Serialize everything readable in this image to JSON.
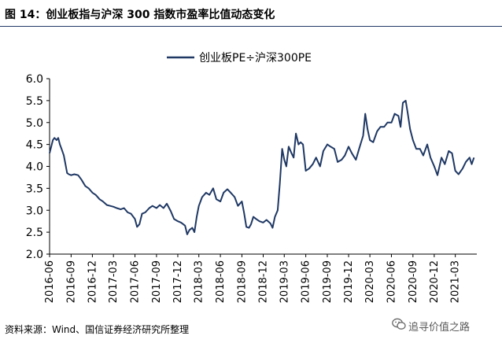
{
  "figure": {
    "title": "图 14：创业板指与沪深 300 指数市盈率比值动态变化",
    "source": "资料来源：Wind、国信证券经济研究所整理",
    "watermark": "追寻价值之路"
  },
  "colors": {
    "line": "#1f3864",
    "rule": "#1f3864",
    "axis": "#000000"
  },
  "chart_data": {
    "type": "line",
    "title": "",
    "xlabel": "",
    "ylabel": "",
    "ylim": [
      2.0,
      6.0
    ],
    "yticks": [
      "2.0",
      "2.5",
      "3.0",
      "3.5",
      "4.0",
      "4.5",
      "5.0",
      "5.5",
      "6.0"
    ],
    "xticks": [
      "2016-06",
      "2016-09",
      "2016-12",
      "2017-03",
      "2017-06",
      "2017-09",
      "2017-12",
      "2018-03",
      "2018-06",
      "2018-09",
      "2018-12",
      "2019-03",
      "2019-06",
      "2019-09",
      "2019-12",
      "2020-03",
      "2020-06",
      "2020-09",
      "2020-12",
      "2021-03"
    ],
    "legend": {
      "position": "top-center",
      "entries": [
        "创业板PE÷沪深300PE"
      ]
    },
    "grid": false,
    "series": [
      {
        "name": "创业板PE÷沪深300PE",
        "points": [
          [
            "2016-06-01",
            4.3
          ],
          [
            "2016-06-08",
            4.45
          ],
          [
            "2016-06-15",
            4.6
          ],
          [
            "2016-06-22",
            4.65
          ],
          [
            "2016-07-01",
            4.6
          ],
          [
            "2016-07-08",
            4.65
          ],
          [
            "2016-07-15",
            4.5
          ],
          [
            "2016-07-22",
            4.4
          ],
          [
            "2016-08-01",
            4.25
          ],
          [
            "2016-08-08",
            4.05
          ],
          [
            "2016-08-15",
            3.85
          ],
          [
            "2016-08-22",
            3.82
          ],
          [
            "2016-09-01",
            3.8
          ],
          [
            "2016-09-15",
            3.82
          ],
          [
            "2016-10-01",
            3.8
          ],
          [
            "2016-10-15",
            3.7
          ],
          [
            "2016-11-01",
            3.55
          ],
          [
            "2016-11-15",
            3.5
          ],
          [
            "2016-12-01",
            3.4
          ],
          [
            "2016-12-15",
            3.35
          ],
          [
            "2017-01-01",
            3.25
          ],
          [
            "2017-01-15",
            3.2
          ],
          [
            "2017-02-01",
            3.12
          ],
          [
            "2017-02-15",
            3.1
          ],
          [
            "2017-03-01",
            3.08
          ],
          [
            "2017-03-15",
            3.05
          ],
          [
            "2017-04-01",
            3.02
          ],
          [
            "2017-04-15",
            3.05
          ],
          [
            "2017-05-01",
            2.95
          ],
          [
            "2017-05-15",
            2.92
          ],
          [
            "2017-06-01",
            2.8
          ],
          [
            "2017-06-10",
            2.62
          ],
          [
            "2017-06-20",
            2.68
          ],
          [
            "2017-07-01",
            2.92
          ],
          [
            "2017-07-15",
            2.95
          ],
          [
            "2017-08-01",
            3.05
          ],
          [
            "2017-08-15",
            3.1
          ],
          [
            "2017-09-01",
            3.05
          ],
          [
            "2017-09-15",
            3.12
          ],
          [
            "2017-10-01",
            3.05
          ],
          [
            "2017-10-15",
            3.15
          ],
          [
            "2017-11-01",
            2.98
          ],
          [
            "2017-11-15",
            2.8
          ],
          [
            "2017-12-01",
            2.75
          ],
          [
            "2017-12-15",
            2.72
          ],
          [
            "2018-01-01",
            2.65
          ],
          [
            "2018-01-10",
            2.45
          ],
          [
            "2018-01-20",
            2.55
          ],
          [
            "2018-02-01",
            2.6
          ],
          [
            "2018-02-10",
            2.5
          ],
          [
            "2018-02-20",
            2.85
          ],
          [
            "2018-03-01",
            3.1
          ],
          [
            "2018-03-15",
            3.3
          ],
          [
            "2018-04-01",
            3.4
          ],
          [
            "2018-04-15",
            3.35
          ],
          [
            "2018-05-01",
            3.5
          ],
          [
            "2018-05-15",
            3.25
          ],
          [
            "2018-06-01",
            3.2
          ],
          [
            "2018-06-15",
            3.4
          ],
          [
            "2018-07-01",
            3.48
          ],
          [
            "2018-07-15",
            3.4
          ],
          [
            "2018-08-01",
            3.3
          ],
          [
            "2018-08-15",
            3.1
          ],
          [
            "2018-09-01",
            3.2
          ],
          [
            "2018-09-10",
            2.95
          ],
          [
            "2018-09-20",
            2.62
          ],
          [
            "2018-10-01",
            2.6
          ],
          [
            "2018-10-10",
            2.68
          ],
          [
            "2018-10-20",
            2.85
          ],
          [
            "2018-11-01",
            2.8
          ],
          [
            "2018-11-15",
            2.75
          ],
          [
            "2018-12-01",
            2.72
          ],
          [
            "2018-12-15",
            2.78
          ],
          [
            "2019-01-01",
            2.7
          ],
          [
            "2019-01-10",
            2.6
          ],
          [
            "2019-01-20",
            2.85
          ],
          [
            "2019-02-01",
            3.0
          ],
          [
            "2019-02-10",
            3.6
          ],
          [
            "2019-02-20",
            4.4
          ],
          [
            "2019-03-01",
            4.15
          ],
          [
            "2019-03-10",
            4.0
          ],
          [
            "2019-03-20",
            4.45
          ],
          [
            "2019-04-01",
            4.3
          ],
          [
            "2019-04-10",
            4.2
          ],
          [
            "2019-04-20",
            4.75
          ],
          [
            "2019-05-01",
            4.5
          ],
          [
            "2019-05-10",
            4.55
          ],
          [
            "2019-05-20",
            4.5
          ],
          [
            "2019-06-01",
            3.9
          ],
          [
            "2019-06-15",
            3.95
          ],
          [
            "2019-07-01",
            4.05
          ],
          [
            "2019-07-15",
            4.2
          ],
          [
            "2019-08-01",
            4.0
          ],
          [
            "2019-08-15",
            4.35
          ],
          [
            "2019-09-01",
            4.5
          ],
          [
            "2019-09-15",
            4.45
          ],
          [
            "2019-10-01",
            4.4
          ],
          [
            "2019-10-15",
            4.1
          ],
          [
            "2019-11-01",
            4.15
          ],
          [
            "2019-11-15",
            4.25
          ],
          [
            "2019-12-01",
            4.45
          ],
          [
            "2019-12-15",
            4.3
          ],
          [
            "2020-01-01",
            4.15
          ],
          [
            "2020-01-15",
            4.4
          ],
          [
            "2020-02-01",
            4.7
          ],
          [
            "2020-02-10",
            5.2
          ],
          [
            "2020-02-20",
            4.85
          ],
          [
            "2020-03-01",
            4.6
          ],
          [
            "2020-03-15",
            4.55
          ],
          [
            "2020-04-01",
            4.8
          ],
          [
            "2020-04-15",
            4.9
          ],
          [
            "2020-05-01",
            4.9
          ],
          [
            "2020-05-15",
            5.0
          ],
          [
            "2020-06-01",
            5.0
          ],
          [
            "2020-06-15",
            5.2
          ],
          [
            "2020-07-01",
            5.15
          ],
          [
            "2020-07-10",
            4.9
          ],
          [
            "2020-07-20",
            5.45
          ],
          [
            "2020-08-01",
            5.5
          ],
          [
            "2020-08-10",
            5.2
          ],
          [
            "2020-08-20",
            4.85
          ],
          [
            "2020-09-01",
            4.6
          ],
          [
            "2020-09-15",
            4.4
          ],
          [
            "2020-10-01",
            4.4
          ],
          [
            "2020-10-15",
            4.25
          ],
          [
            "2020-11-01",
            4.5
          ],
          [
            "2020-11-15",
            4.2
          ],
          [
            "2020-12-01",
            4.0
          ],
          [
            "2020-12-15",
            3.8
          ],
          [
            "2021-01-01",
            4.2
          ],
          [
            "2021-01-15",
            4.05
          ],
          [
            "2021-02-01",
            4.35
          ],
          [
            "2021-02-15",
            4.3
          ],
          [
            "2021-03-01",
            3.9
          ],
          [
            "2021-03-15",
            3.82
          ],
          [
            "2021-04-01",
            3.95
          ],
          [
            "2021-04-15",
            4.1
          ],
          [
            "2021-05-01",
            4.2
          ],
          [
            "2021-05-10",
            4.05
          ],
          [
            "2021-05-20",
            4.2
          ]
        ]
      }
    ]
  }
}
